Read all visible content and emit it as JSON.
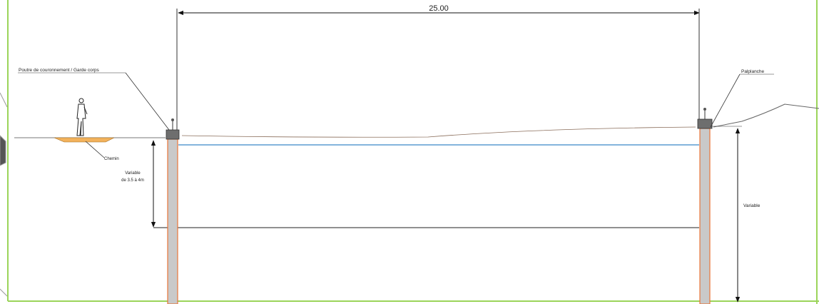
{
  "dimension_label": "25.00",
  "labels": {
    "poutre": "Poutre de couronnement / Garde corps",
    "palplanche": "Palplanche",
    "chemin": "Chemin",
    "variable_left_line1": "Variable",
    "variable_left_line2": "de 3.5 à 4m",
    "variable_right": "Variable"
  },
  "colors": {
    "frame_green": "#9bd45a",
    "water_line": "#3b86c8",
    "sheet_pile_fill": "#c9c9c9",
    "sheet_pile_edge": "#e8743a",
    "cap_beam": "#6e6e6e",
    "path_fill": "#f2b25c"
  }
}
